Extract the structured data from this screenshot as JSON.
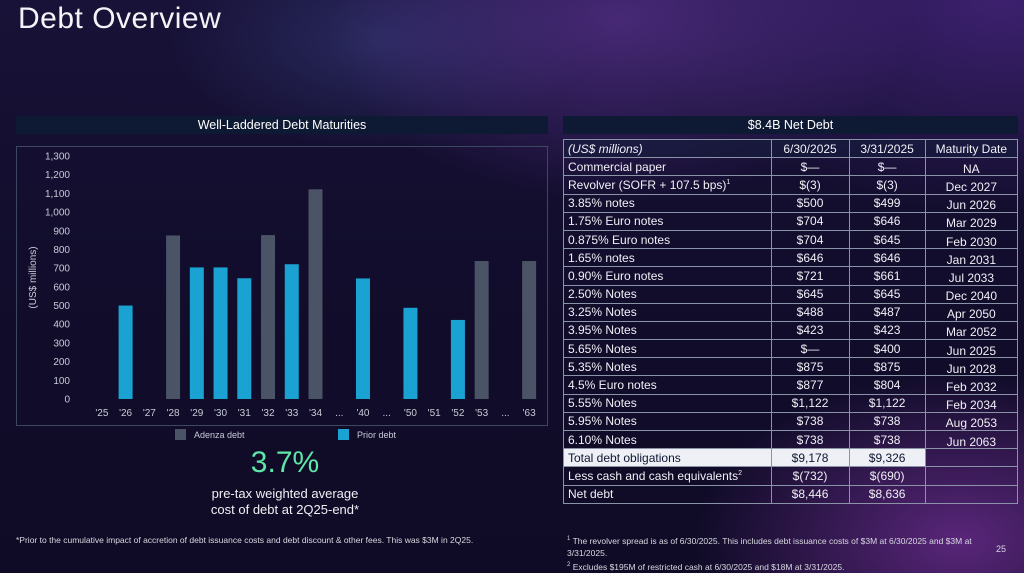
{
  "page": {
    "title": "Debt Overview",
    "page_number": "25",
    "footnote_left": "*Prior to the cumulative impact of accretion of debt issuance costs and debt discount & other fees. This was $3M in 2Q25.",
    "footnote_right_1": "The revolver spread is as of 6/30/2025. This includes debt issuance costs of $3M at 6/30/2025 and $3M at 3/31/2025.",
    "footnote_right_2": "Excludes $195M of restricted cash at 6/30/2025 and $18M at 3/31/2025."
  },
  "left_panel": {
    "header": "Well-Laddered Debt Maturities",
    "stat_value": "3.7%",
    "stat_caption_line1": "pre-tax weighted average",
    "stat_caption_line2": "cost of debt at 2Q25-end*"
  },
  "right_panel": {
    "header": "$8.4B Net Debt",
    "columns": [
      "(US$ millions)",
      "6/30/2025",
      "3/31/2025",
      "Maturity Date"
    ],
    "rows": [
      {
        "label": "Commercial paper",
        "sup": "",
        "q2": "$—",
        "q1": "$—",
        "maturity": "NA"
      },
      {
        "label": "Revolver (SOFR + 107.5 bps)",
        "sup": "1",
        "q2": "$(3)",
        "q1": "$(3)",
        "maturity": "Dec 2027"
      },
      {
        "label": "3.85% notes",
        "sup": "",
        "q2": "$500",
        "q1": "$499",
        "maturity": "Jun 2026"
      },
      {
        "label": "1.75% Euro notes",
        "sup": "",
        "q2": "$704",
        "q1": "$646",
        "maturity": "Mar 2029"
      },
      {
        "label": "0.875% Euro notes",
        "sup": "",
        "q2": "$704",
        "q1": "$645",
        "maturity": "Feb 2030"
      },
      {
        "label": "1.65% notes",
        "sup": "",
        "q2": "$646",
        "q1": "$646",
        "maturity": "Jan 2031"
      },
      {
        "label": "0.90% Euro notes",
        "sup": "",
        "q2": "$721",
        "q1": "$661",
        "maturity": "Jul 2033"
      },
      {
        "label": "2.50% Notes",
        "sup": "",
        "q2": "$645",
        "q1": "$645",
        "maturity": "Dec 2040"
      },
      {
        "label": "3.25% Notes",
        "sup": "",
        "q2": "$488",
        "q1": "$487",
        "maturity": "Apr 2050"
      },
      {
        "label": "3.95% Notes",
        "sup": "",
        "q2": "$423",
        "q1": "$423",
        "maturity": "Mar 2052"
      },
      {
        "label": "5.65% Notes",
        "sup": "",
        "q2": "$—",
        "q1": "$400",
        "maturity": "Jun 2025"
      },
      {
        "label": "5.35% Notes",
        "sup": "",
        "q2": "$875",
        "q1": "$875",
        "maturity": "Jun 2028"
      },
      {
        "label": "4.5% Euro notes",
        "sup": "",
        "q2": "$877",
        "q1": "$804",
        "maturity": "Feb 2032"
      },
      {
        "label": "5.55% Notes",
        "sup": "",
        "q2": "$1,122",
        "q1": "$1,122",
        "maturity": "Feb 2034"
      },
      {
        "label": "5.95% Notes",
        "sup": "",
        "q2": "$738",
        "q1": "$738",
        "maturity": "Aug 2053"
      },
      {
        "label": "6.10% Notes",
        "sup": "",
        "q2": "$738",
        "q1": "$738",
        "maturity": "Jun 2063"
      }
    ],
    "total": {
      "label": "Total debt obligations",
      "q2": "$9,178",
      "q1": "$9,326"
    },
    "less_cash": {
      "label": "Less cash and cash equivalents",
      "sup": "2",
      "q2": "$(732)",
      "q1": "$(690)"
    },
    "net_debt": {
      "label": "Net debt",
      "q2": "$8,446",
      "q1": "$8,636"
    }
  },
  "colors": {
    "adenza": "#4a5466",
    "prior": "#1aa3d2",
    "stat": "#5de6a8"
  },
  "chart_data": {
    "type": "bar",
    "ylabel": "(US$ millions)",
    "xlabel": "",
    "ylim": [
      0,
      1300
    ],
    "yticks": [
      0,
      100,
      200,
      300,
      400,
      500,
      600,
      700,
      800,
      900,
      1000,
      1100,
      1200,
      1300
    ],
    "ytick_labels": [
      "0",
      "100",
      "200",
      "300",
      "400",
      "500",
      "600",
      "700",
      "800",
      "900",
      "1,000",
      "1,100",
      "1,200",
      "1,300"
    ],
    "categories": [
      "'25",
      "'26",
      "'27",
      "'28",
      "'29",
      "'30",
      "'31",
      "'32",
      "'33",
      "'34",
      "...",
      "'40",
      "...",
      "'50",
      "'51",
      "'52",
      "'53",
      "...",
      "'63"
    ],
    "series": [
      {
        "name": "Adenza debt",
        "values": [
          0,
          0,
          0,
          875,
          0,
          0,
          0,
          877,
          0,
          1122,
          0,
          0,
          0,
          0,
          0,
          0,
          738,
          0,
          738
        ]
      },
      {
        "name": "Prior debt",
        "values": [
          0,
          500,
          0,
          0,
          704,
          704,
          646,
          0,
          721,
          0,
          0,
          645,
          0,
          488,
          0,
          423,
          0,
          0,
          0
        ]
      }
    ],
    "legend_position": "bottom",
    "grid": false
  }
}
